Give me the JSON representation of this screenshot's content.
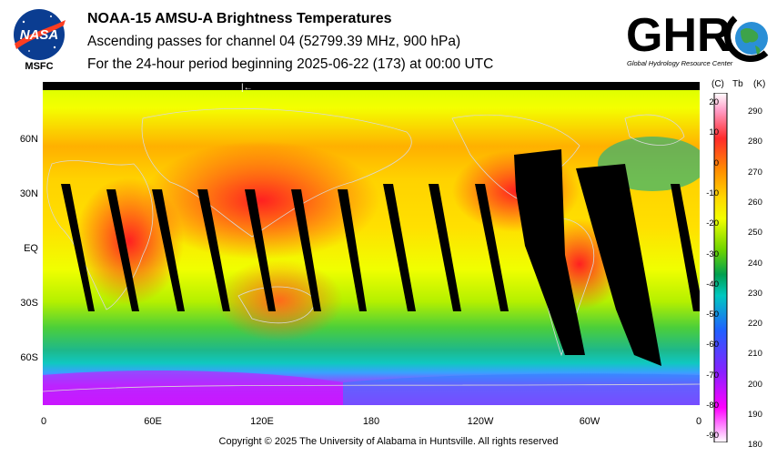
{
  "header": {
    "logo_left_text": "MSFC",
    "title": "NOAA-15 AMSU-A Brightness Temperatures",
    "subtitle": "Ascending passes for channel 04 (52799.39 MHz, 900 hPa)",
    "period": "For the 24-hour period beginning 2025-06-22 (173) at 00:00 UTC",
    "logo_right_text": "GHRC",
    "logo_right_caption": "Global Hydrology Resource Center"
  },
  "map": {
    "lat_labels": [
      "60N",
      "30N",
      "EQ",
      "30S",
      "60S"
    ],
    "lon_labels": [
      "0",
      "60E",
      "120E",
      "180",
      "120W",
      "60W",
      "0"
    ],
    "top_bar_marker": "|←"
  },
  "colorbar": {
    "left_unit": "(C)",
    "mid_unit": "Tb",
    "right_unit": "(K)",
    "celsius_ticks": [
      "20",
      "10",
      "0",
      "-10",
      "-20",
      "-30",
      "-40",
      "-50",
      "-60",
      "-70",
      "-80",
      "-90"
    ],
    "kelvin_ticks": [
      "290",
      "280",
      "270",
      "260",
      "250",
      "240",
      "230",
      "220",
      "210",
      "200",
      "190",
      "180"
    ],
    "colors": [
      "#ffffff",
      "#ff9ec8",
      "#ff2a2a",
      "#ff8c00",
      "#ffd700",
      "#f2ff00",
      "#6cd400",
      "#00a050",
      "#00c8c0",
      "#2060ff",
      "#8a20ff",
      "#ff00ff",
      "#ffffff"
    ]
  },
  "footer": {
    "copyright": "Copyright © 2025 The University of Alabama in Huntsville.  All rights reserved"
  }
}
